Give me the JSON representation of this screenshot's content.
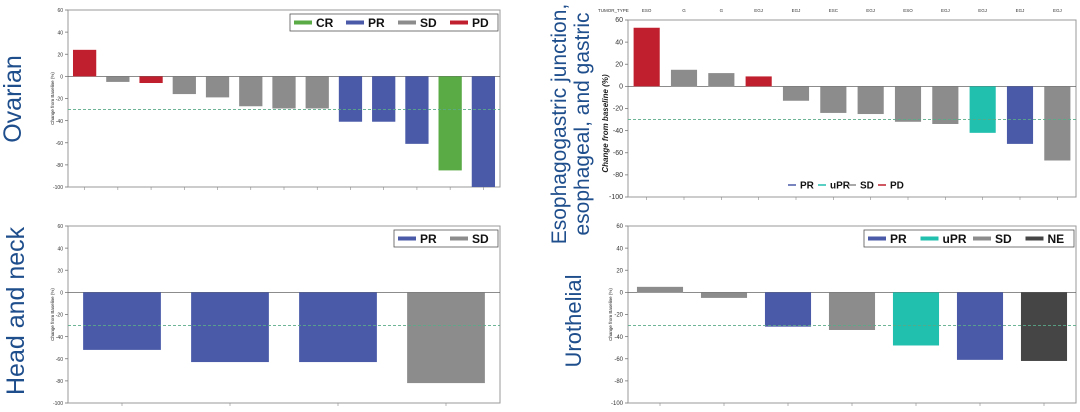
{
  "colors": {
    "CR": "#5aaa46",
    "PR": "#4a5aa8",
    "uPR": "#20bfae",
    "SD": "#8c8c8c",
    "PD": "#c0202e",
    "NE": "#454545",
    "threshold": "#5aaa88",
    "label_blue": "#1f4e8c"
  },
  "panel_labels": {
    "ovarian": "Ovarian",
    "head_neck": "Head and neck",
    "egj_line1": "Esophagogastric junction,",
    "egj_line2": "esophageal, and gastric",
    "urothelial": "Urothelial"
  },
  "chart_data": [
    {
      "id": "ovarian",
      "type": "bar",
      "ylabel": "Change from Baseline (%)",
      "ylim": [
        -100,
        60
      ],
      "yticks": [
        60,
        40,
        20,
        0,
        -20,
        -40,
        -60,
        -80,
        -100
      ],
      "threshold": -30,
      "legend": [
        "CR",
        "PR",
        "SD",
        "PD"
      ],
      "legend_position": "top-right",
      "bars": [
        {
          "value": 24,
          "response": "PD"
        },
        {
          "value": -5,
          "response": "SD"
        },
        {
          "value": -6,
          "response": "PD"
        },
        {
          "value": -16,
          "response": "SD"
        },
        {
          "value": -19,
          "response": "SD"
        },
        {
          "value": -27,
          "response": "SD"
        },
        {
          "value": -29,
          "response": "SD"
        },
        {
          "value": -29,
          "response": "SD"
        },
        {
          "value": -41,
          "response": "PR"
        },
        {
          "value": -41,
          "response": "PR"
        },
        {
          "value": -61,
          "response": "PR"
        },
        {
          "value": -85,
          "response": "CR"
        },
        {
          "value": -100,
          "response": "PR"
        }
      ]
    },
    {
      "id": "egj",
      "type": "bar",
      "ylabel": "Change from  baseline (%)",
      "tumor_type_label": "TUMOR_TYPE",
      "tumor_types": [
        "ESO",
        "G",
        "G",
        "EGJ",
        "EGJ",
        "ESC",
        "EGJ",
        "ESO",
        "EGJ",
        "EGJ",
        "EGJ",
        "EGJ"
      ],
      "ylim": [
        -100,
        60
      ],
      "yticks": [
        60,
        40,
        20,
        0,
        -20,
        -40,
        -60,
        -80,
        -100
      ],
      "threshold": -30,
      "legend": [
        "PR",
        "uPR",
        "SD",
        "PD"
      ],
      "legend_position": "bottom",
      "bars": [
        {
          "value": 53,
          "response": "PD"
        },
        {
          "value": 15,
          "response": "SD"
        },
        {
          "value": 12,
          "response": "SD"
        },
        {
          "value": 9,
          "response": "PD"
        },
        {
          "value": -13,
          "response": "SD"
        },
        {
          "value": -24,
          "response": "SD"
        },
        {
          "value": -25,
          "response": "SD"
        },
        {
          "value": -32,
          "response": "SD"
        },
        {
          "value": -34,
          "response": "SD"
        },
        {
          "value": -42,
          "response": "uPR"
        },
        {
          "value": -52,
          "response": "PR"
        },
        {
          "value": -67,
          "response": "SD"
        }
      ]
    },
    {
      "id": "head_neck",
      "type": "bar",
      "ylabel": "Change from Baseline (%)",
      "ylim": [
        -100,
        60
      ],
      "yticks": [
        60,
        40,
        20,
        0,
        -20,
        -40,
        -60,
        -80,
        -100
      ],
      "threshold": -30,
      "legend": [
        "PR",
        "SD"
      ],
      "legend_position": "top-right",
      "bars": [
        {
          "value": -52,
          "response": "PR"
        },
        {
          "value": -63,
          "response": "PR"
        },
        {
          "value": -63,
          "response": "PR"
        },
        {
          "value": -82,
          "response": "SD"
        }
      ]
    },
    {
      "id": "urothelial",
      "type": "bar",
      "ylabel": "Change from Baseline (%)",
      "ylim": [
        -100,
        60
      ],
      "yticks": [
        60,
        40,
        20,
        0,
        -20,
        -40,
        -60,
        -80,
        -100
      ],
      "threshold": -30,
      "legend": [
        "PR",
        "uPR",
        "SD",
        "NE"
      ],
      "legend_position": "top-right",
      "bars": [
        {
          "value": 5,
          "response": "SD"
        },
        {
          "value": -5,
          "response": "SD"
        },
        {
          "value": -31,
          "response": "PR"
        },
        {
          "value": -34,
          "response": "SD"
        },
        {
          "value": -48,
          "response": "uPR"
        },
        {
          "value": -61,
          "response": "PR"
        },
        {
          "value": -62,
          "response": "NE"
        }
      ]
    }
  ]
}
